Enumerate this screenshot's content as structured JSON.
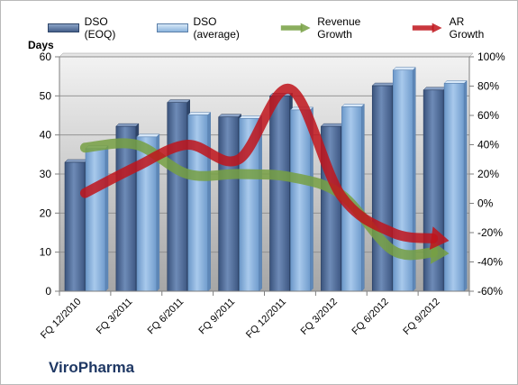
{
  "company": "ViroPharma",
  "chart_data": {
    "type": "bar",
    "subtype": "bar+line combo, dual axis",
    "categories": [
      "FQ 12/2010",
      "FQ 3/2011",
      "FQ 6/2011",
      "FQ 9/2011",
      "FQ 12/2011",
      "FQ 3/2012",
      "FQ 6/2012",
      "FQ 9/2012"
    ],
    "units_label": "Days",
    "y_left": {
      "lim": [
        0,
        60
      ],
      "ticks": [
        "0",
        "10",
        "20",
        "30",
        "40",
        "50",
        "60"
      ]
    },
    "y_right": {
      "lim": [
        -60,
        100
      ],
      "ticks": [
        "-60%",
        "-40%",
        "-20%",
        "0%",
        "20%",
        "40%",
        "60%",
        "80%",
        "100%"
      ]
    },
    "grid": true,
    "legend_position": "top",
    "series": [
      {
        "name": "DSO (EOQ)",
        "kind": "bar",
        "axis": "left",
        "color": "#4f6d99",
        "values": [
          33.0,
          42.2,
          48.3,
          44.6,
          50.0,
          42.2,
          52.6,
          51.5
        ]
      },
      {
        "name": "DSO (average)",
        "kind": "bar",
        "axis": "left",
        "color": "#8db4e0",
        "values": [
          36.5,
          39.5,
          45.1,
          44.2,
          46.4,
          47.2,
          56.6,
          53.2
        ]
      },
      {
        "name": "Revenue Growth",
        "kind": "line",
        "axis": "right",
        "color": "#77a043",
        "values": [
          38,
          40,
          20,
          20,
          18,
          6,
          -32,
          -34
        ]
      },
      {
        "name": "AR Growth",
        "kind": "line",
        "axis": "right",
        "color": "#c0141b",
        "values": [
          7,
          25,
          40,
          30,
          78,
          5,
          -20,
          -25
        ]
      }
    ]
  }
}
